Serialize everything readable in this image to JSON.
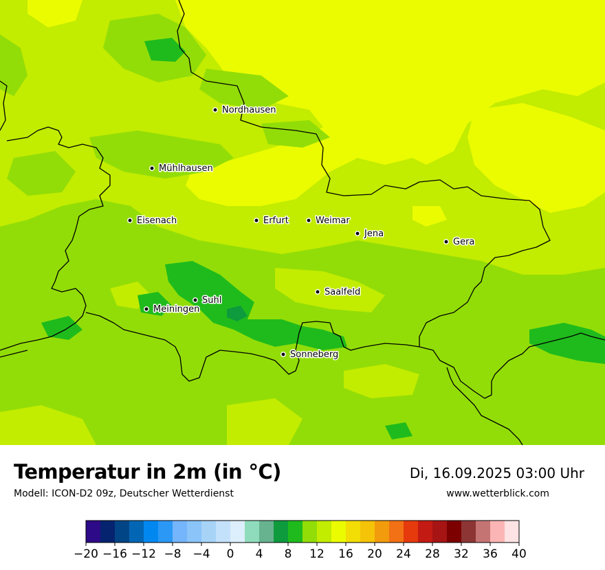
{
  "map": {
    "cities": [
      {
        "name": "Nordhausen"
      },
      {
        "name": "Mühlhausen"
      },
      {
        "name": "Eisenach"
      },
      {
        "name": "Erfurt"
      },
      {
        "name": "Weimar"
      },
      {
        "name": "Jena"
      },
      {
        "name": "Gera"
      },
      {
        "name": "Saalfeld"
      },
      {
        "name": "Suhl"
      },
      {
        "name": "Meiningen"
      },
      {
        "name": "Sonneberg"
      }
    ],
    "colors": {
      "c4_6": "#67b28f",
      "c6_8": "#0e9b3d",
      "c8_10": "#1fbb1c",
      "c10_12": "#92dd08",
      "c12_14": "#c2ec00",
      "c14_16": "#ebfc00"
    }
  },
  "footer": {
    "title": "Temperatur in 2m (in °C)",
    "subtitle": "Modell: ICON-D2 09z, Deutscher Wetterdienst",
    "datetime": "Di, 16.09.2025 03:00 Uhr",
    "website": "www.wetterblick.com"
  },
  "legend": {
    "min": -20,
    "max": 40,
    "step": 2,
    "tick_labels": [
      "−20",
      "−16",
      "−12",
      "−8",
      "−4",
      "0",
      "4",
      "8",
      "12",
      "16",
      "20",
      "24",
      "28",
      "32",
      "36",
      "40"
    ],
    "colors": [
      "#2d0a87",
      "#05236f",
      "#024586",
      "#0266b4",
      "#0088f0",
      "#2b98f5",
      "#74b5fb",
      "#8ac4f9",
      "#a7d3f7",
      "#c3e1fb",
      "#ddeefc",
      "#8fdcbc",
      "#67b28f",
      "#0e9b3d",
      "#1fbb1c",
      "#92dd08",
      "#c2ec00",
      "#ebfc00",
      "#f2dd05",
      "#f5c307",
      "#f29b0d",
      "#f27114",
      "#e63a0d",
      "#c31b13",
      "#a61414",
      "#7d0000",
      "#8d3535",
      "#c57474",
      "#fbb5b5",
      "#fde3e3"
    ]
  }
}
